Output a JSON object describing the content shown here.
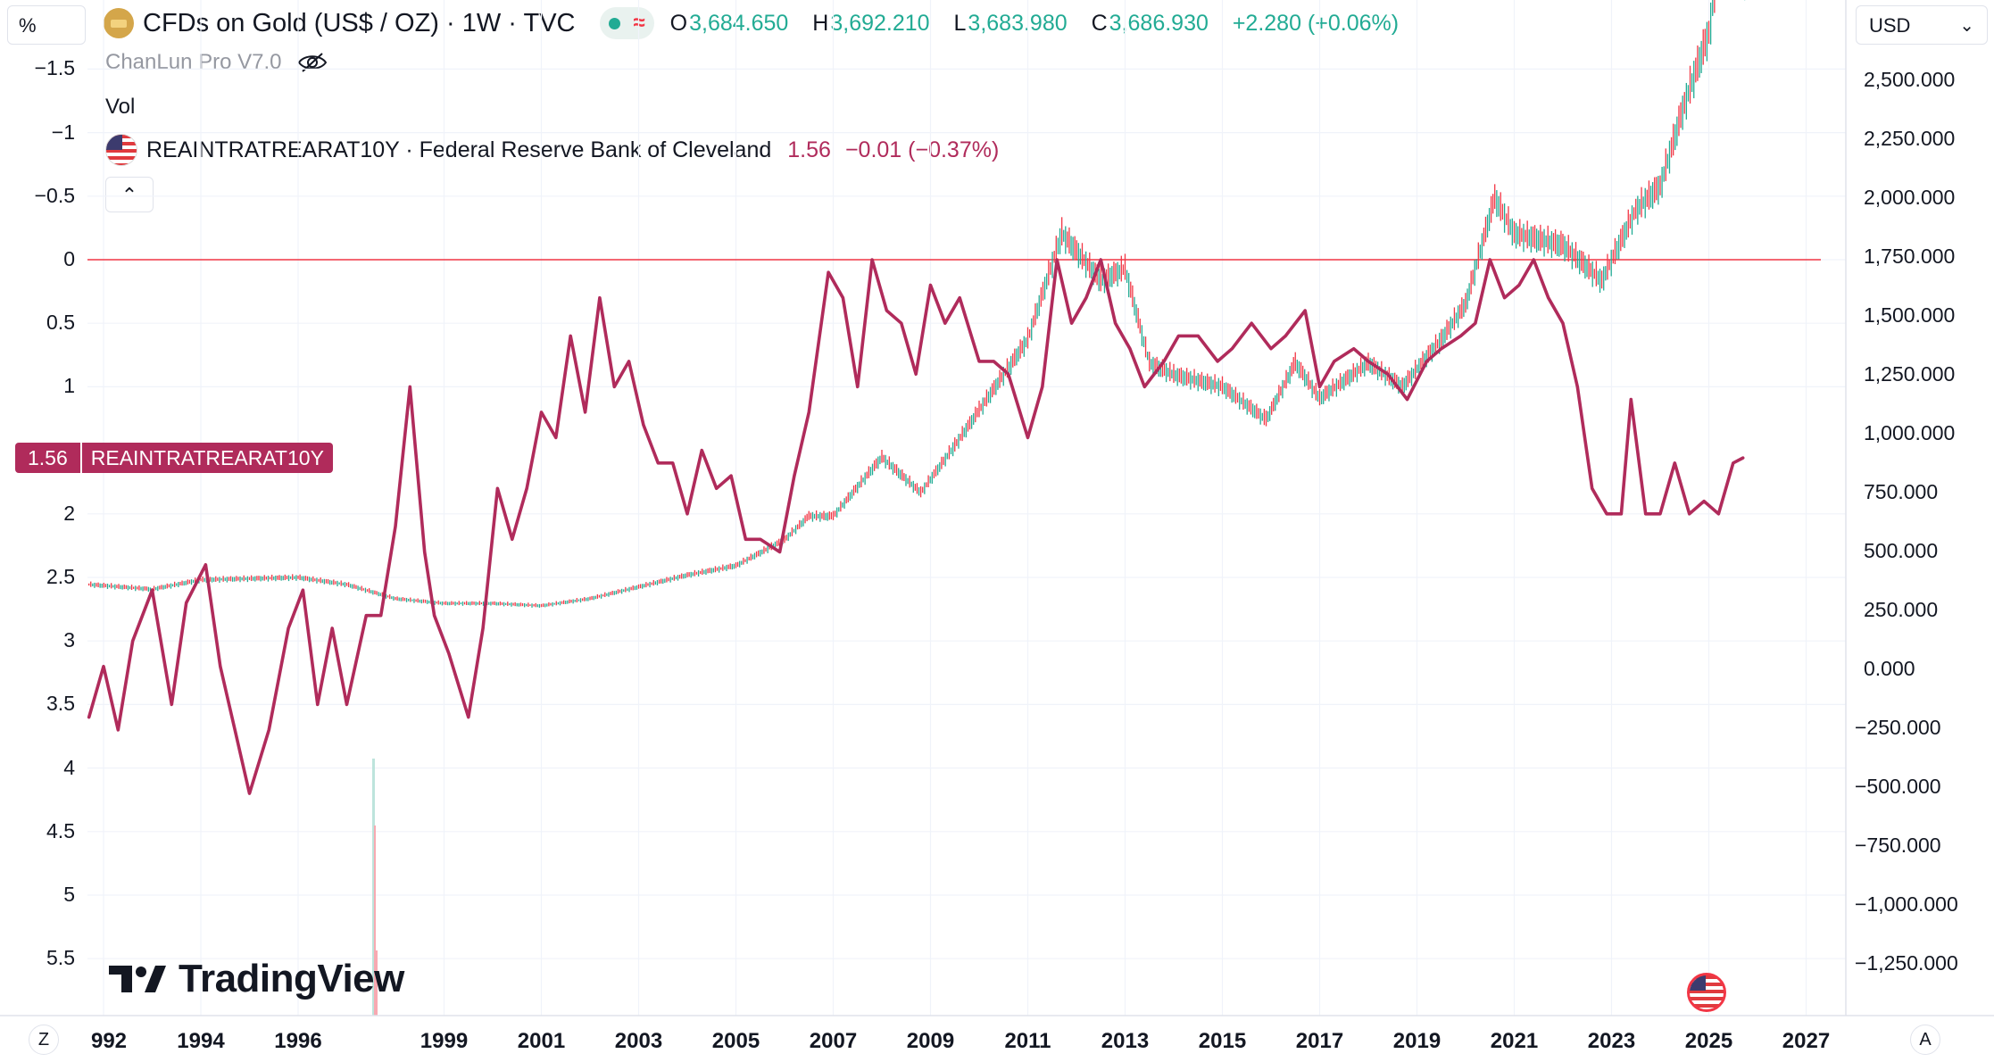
{
  "header": {
    "left_scale_unit": "%",
    "currency": "USD",
    "symbol_title": "CFDs on Gold (US$ / OZ) · 1W · TVC",
    "ohlc": {
      "o_label": "O",
      "o_value": "3,684.650",
      "h_label": "H",
      "h_value": "3,692.210",
      "l_label": "L",
      "l_value": "3,683.980",
      "c_label": "C",
      "c_value": "3,686.930",
      "change": "+2.280 (+0.06%)"
    },
    "status_wave": "≈"
  },
  "indicators": {
    "chanlun": "ChanLun Pro V7.0",
    "vol": "Vol",
    "real_rate": {
      "name": "REAINTRATREARAT10Y · Federal Reserve Bank of Cleveland",
      "value": "1.56",
      "change": "−0.01 (−0.37%)"
    },
    "collapse_glyph": "⌃"
  },
  "series_label": {
    "value": "1.56",
    "name": "REAINTRATREARAT10Y"
  },
  "left_axis_ticks": [
    "−1.5",
    "−1",
    "−0.5",
    "0",
    "0.5",
    "1",
    "2",
    "2.5",
    "3",
    "3.5",
    "4",
    "4.5",
    "5",
    "5.5"
  ],
  "right_axis_ticks": [
    "2,500.000",
    "2,250.000",
    "2,000.000",
    "1,750.000",
    "1,500.000",
    "1,250.000",
    "1,000.000",
    "750.000",
    "500.000",
    "250.000",
    "0.000",
    "−250.000",
    "−500.000",
    "−750.000",
    "−1,000.000",
    "−1,250.000"
  ],
  "x_axis_ticks": [
    "992",
    "1994",
    "1996",
    "1999",
    "2001",
    "2003",
    "2005",
    "2007",
    "2009",
    "2011",
    "2013",
    "2015",
    "2017",
    "2019",
    "2021",
    "2023",
    "2025",
    "2027"
  ],
  "bottom": {
    "z_label": "Z",
    "a_label": "A",
    "brand": "TradingView"
  },
  "colors": {
    "real_rate_line": "#b02b5b",
    "gold_up": "#22ab94",
    "gold_down": "#f23645",
    "zero_line": "#f23645",
    "grid": "#f0f3fa"
  },
  "chart_data": [
    {
      "type": "line",
      "name": "REAINTRATREARAT10Y",
      "axis": "left (%, inverted)",
      "x": [
        1991.7,
        1992.0,
        1992.3,
        1992.6,
        1993.0,
        1993.4,
        1993.7,
        1994.1,
        1994.4,
        1994.7,
        1995.0,
        1995.4,
        1995.8,
        1996.1,
        1996.4,
        1996.7,
        1997.0,
        1997.4,
        1997.7,
        1998.0,
        1998.3,
        1998.6,
        1998.8,
        1999.1,
        1999.5,
        1999.8,
        2000.1,
        2000.4,
        2000.7,
        2001.0,
        2001.3,
        2001.6,
        2001.9,
        2002.2,
        2002.5,
        2002.8,
        2003.1,
        2003.4,
        2003.7,
        2004.0,
        2004.3,
        2004.6,
        2004.9,
        2005.2,
        2005.5,
        2005.9,
        2006.2,
        2006.5,
        2006.9,
        2007.2,
        2007.5,
        2007.8,
        2008.1,
        2008.4,
        2008.7,
        2009.0,
        2009.3,
        2009.6,
        2010.0,
        2010.3,
        2010.6,
        2011.0,
        2011.3,
        2011.6,
        2011.9,
        2012.2,
        2012.5,
        2012.8,
        2013.1,
        2013.4,
        2013.8,
        2014.1,
        2014.5,
        2014.9,
        2015.2,
        2015.6,
        2016.0,
        2016.3,
        2016.7,
        2017.0,
        2017.3,
        2017.7,
        2018.0,
        2018.4,
        2018.8,
        2019.2,
        2019.5,
        2019.9,
        2020.2,
        2020.5,
        2020.8,
        2021.1,
        2021.4,
        2021.7,
        2022.0,
        2022.3,
        2022.6,
        2022.9,
        2023.2,
        2023.4,
        2023.7,
        2024.0,
        2024.3,
        2024.6,
        2024.9,
        2025.2,
        2025.5,
        2025.7
      ],
      "y": [
        3.6,
        3.2,
        3.7,
        3.0,
        2.6,
        3.5,
        2.7,
        2.4,
        3.2,
        3.7,
        4.2,
        3.7,
        2.9,
        2.6,
        3.5,
        2.9,
        3.5,
        2.8,
        2.8,
        2.1,
        1.0,
        2.3,
        2.8,
        3.1,
        3.6,
        2.9,
        1.8,
        2.2,
        1.8,
        1.2,
        1.4,
        0.6,
        1.2,
        0.3,
        1.0,
        0.8,
        1.3,
        1.6,
        1.6,
        2.0,
        1.5,
        1.8,
        1.7,
        2.2,
        2.2,
        2.3,
        1.7,
        1.2,
        0.1,
        0.3,
        1.0,
        0.0,
        0.4,
        0.5,
        0.9,
        0.2,
        0.5,
        0.3,
        0.8,
        0.8,
        0.9,
        1.4,
        1.0,
        0.0,
        0.5,
        0.3,
        0.0,
        0.5,
        0.7,
        1.0,
        0.8,
        0.6,
        0.6,
        0.8,
        0.7,
        0.5,
        0.7,
        0.6,
        0.4,
        1.0,
        0.8,
        0.7,
        0.8,
        0.9,
        1.1,
        0.8,
        0.7,
        0.6,
        0.5,
        0.0,
        0.3,
        0.2,
        0.0,
        0.3,
        0.5,
        1.0,
        1.8,
        2.0,
        2.0,
        1.1,
        2.0,
        2.0,
        1.6,
        2.0,
        1.9,
        2.0,
        1.6,
        1.56
      ]
    },
    {
      "type": "line",
      "name": "CFDs on Gold (US$ / OZ)",
      "axis": "right (USD)",
      "x": [
        1991.7,
        1993.0,
        1994.0,
        1995.0,
        1996.0,
        1997.0,
        1998.0,
        1999.0,
        2000.0,
        2001.0,
        2002.0,
        2003.0,
        2004.0,
        2005.0,
        2006.0,
        2006.5,
        2007.0,
        2008.0,
        2008.8,
        2009.5,
        2010.0,
        2011.0,
        2011.7,
        2012.5,
        2013.0,
        2013.5,
        2014.0,
        2015.0,
        2015.9,
        2016.5,
        2017.0,
        2018.0,
        2018.7,
        2019.5,
        2020.0,
        2020.6,
        2021.0,
        2022.0,
        2022.8,
        2023.5,
        2024.0,
        2024.5,
        2025.0,
        2025.7
      ],
      "y": [
        360,
        340,
        380,
        385,
        390,
        360,
        300,
        280,
        280,
        270,
        300,
        350,
        400,
        440,
        550,
        650,
        650,
        900,
        750,
        950,
        1100,
        1400,
        1850,
        1650,
        1700,
        1300,
        1250,
        1200,
        1060,
        1300,
        1150,
        1300,
        1200,
        1400,
        1550,
        2000,
        1850,
        1800,
        1650,
        1950,
        2050,
        2400,
        2700,
        3686.93
      ]
    }
  ]
}
